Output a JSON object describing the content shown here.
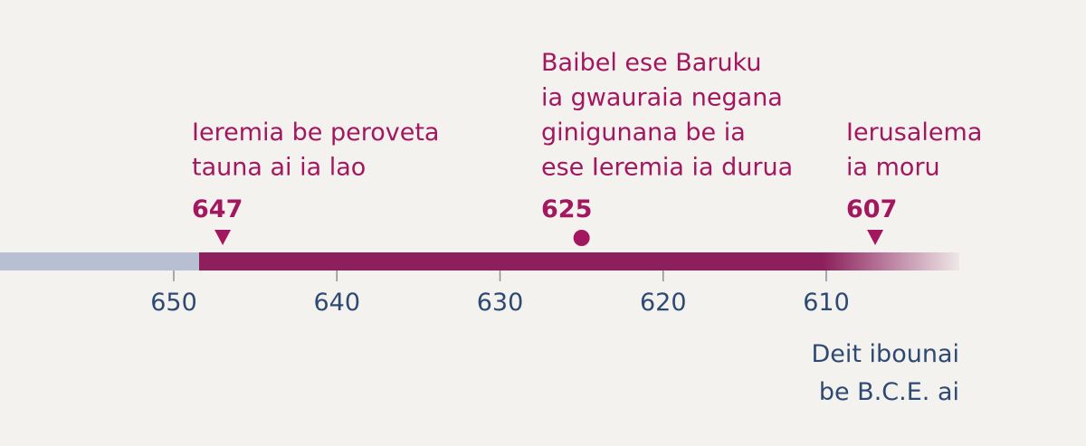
{
  "timeline": {
    "ticks": [
      650,
      640,
      630,
      620,
      610
    ],
    "events": [
      {
        "lines": [
          "Ieremia be peroveta",
          "tauna ai ia lao"
        ],
        "year": 647,
        "marker": "triangle"
      },
      {
        "lines": [
          "Baibel ese Baruku",
          "ia gwauraia negana",
          "ginigunana be ia",
          "ese Ieremia ia durua"
        ],
        "year": 625,
        "marker": "dot"
      },
      {
        "lines": [
          "Ierusalema",
          "ia moru"
        ],
        "year": 607,
        "marker": "triangle"
      }
    ],
    "axis_note": [
      "Deit ibounai",
      "be B.C.E. ai"
    ]
  }
}
